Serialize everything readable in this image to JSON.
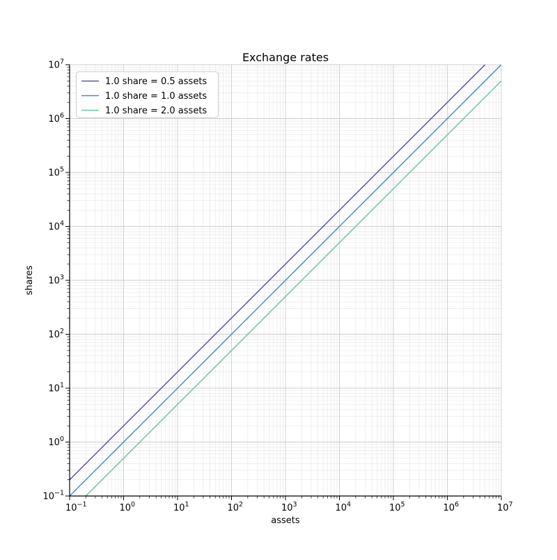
{
  "chart_data": {
    "type": "line",
    "title": "Exchange rates",
    "xlabel": "assets",
    "ylabel": "shares",
    "xscale": "log",
    "yscale": "log",
    "xlim": [
      0.1,
      10000000
    ],
    "ylim": [
      0.1,
      10000000
    ],
    "tick_exponents": [
      -1,
      0,
      1,
      2,
      3,
      4,
      5,
      6,
      7
    ],
    "grid": {
      "enabled": true,
      "minor": true,
      "major_color": "#cccccc",
      "minor_color": "#e8e8e8"
    },
    "spines": {
      "left": true,
      "bottom": true,
      "top": false,
      "right": false,
      "color": "#000000"
    },
    "legend": {
      "position": "upper left",
      "border_color": "#cccccc",
      "background": "#ffffff"
    },
    "series": [
      {
        "name": "1.0 share = 0.5 assets",
        "rate_assets_per_share": 0.5,
        "color": "#5b55a8",
        "points": [
          [
            0.1,
            0.2
          ],
          [
            10000000,
            20000000
          ]
        ]
      },
      {
        "name": "1.0 share = 1.0 assets",
        "rate_assets_per_share": 1.0,
        "color": "#3f8fc9",
        "points": [
          [
            0.1,
            0.1
          ],
          [
            10000000,
            10000000
          ]
        ]
      },
      {
        "name": "1.0 share = 2.0 assets",
        "rate_assets_per_share": 2.0,
        "color": "#68caa0",
        "points": [
          [
            0.1,
            0.05
          ],
          [
            10000000,
            5000000
          ]
        ]
      }
    ]
  }
}
